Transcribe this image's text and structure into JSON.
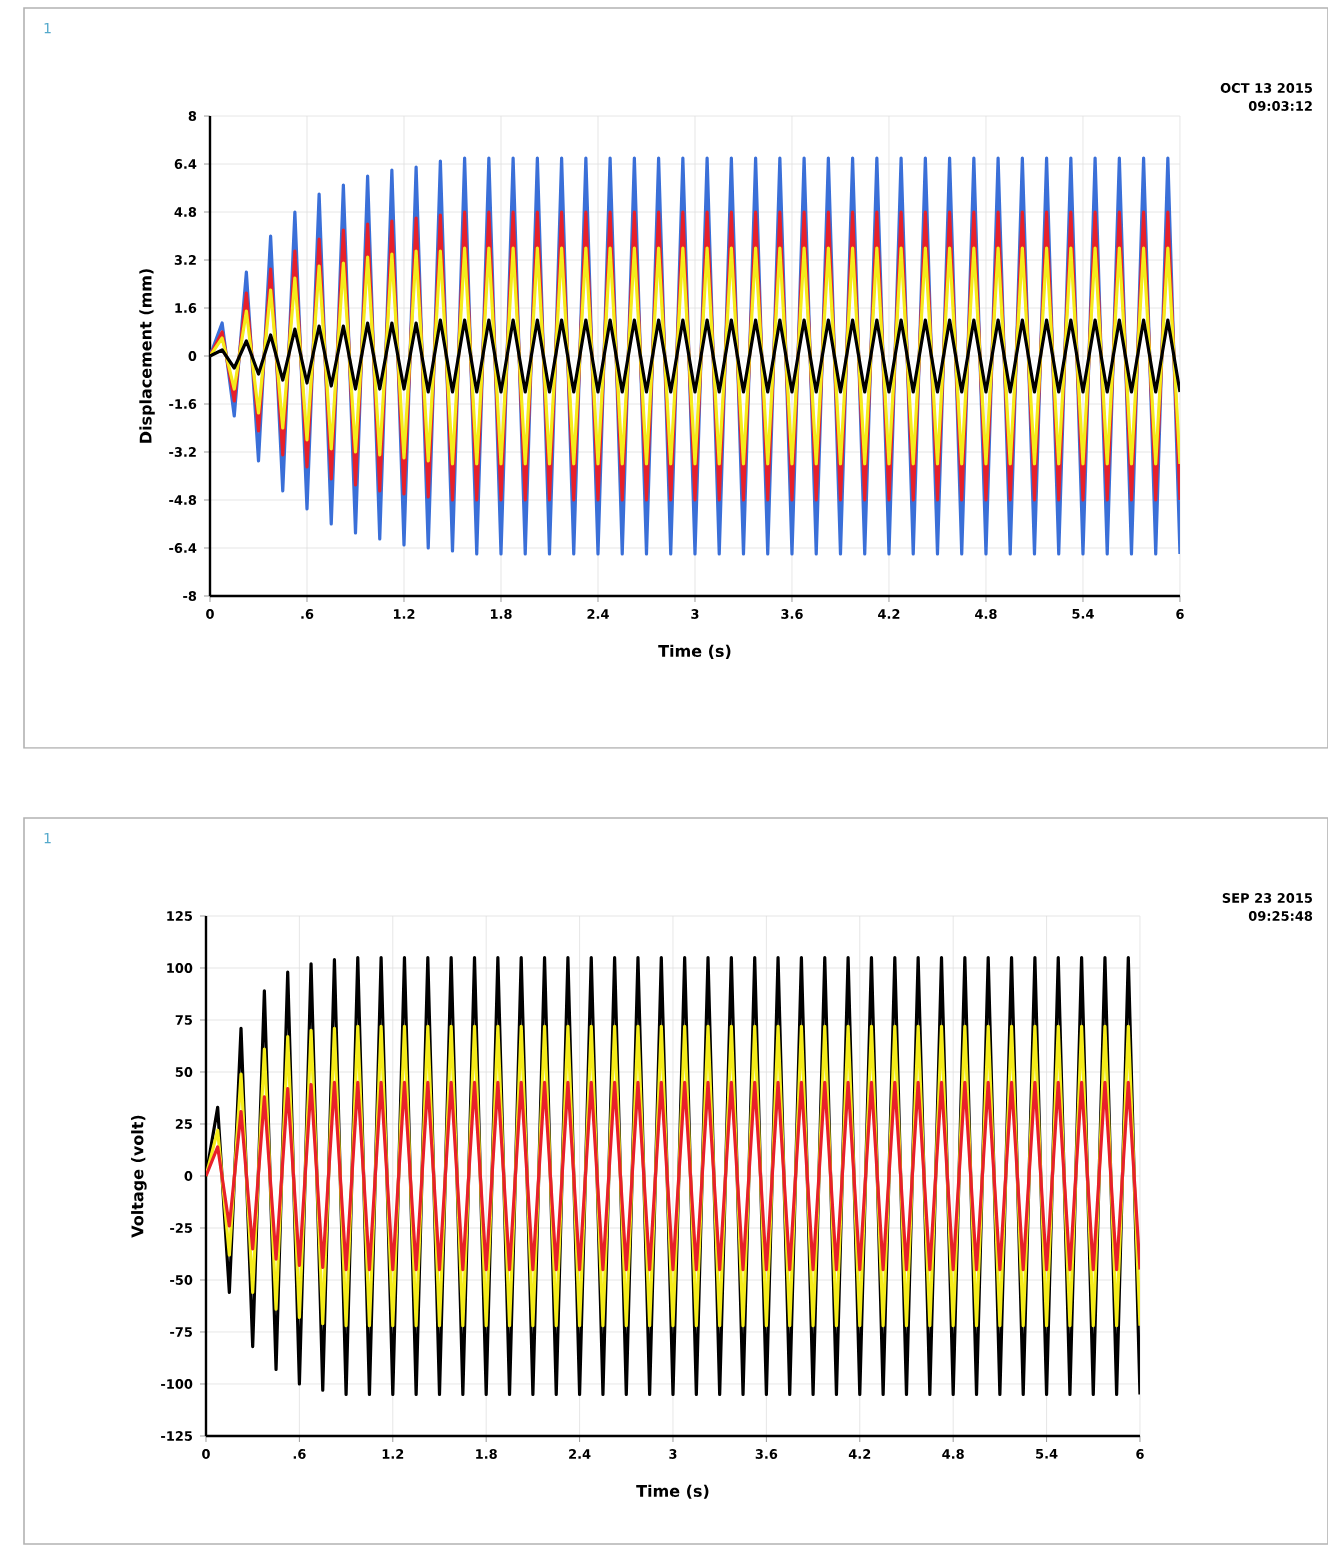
{
  "chart_data": [
    {
      "type": "line",
      "xlabel": "Time (s)",
      "ylabel": "Displacement (mm)",
      "annotations": [
        "1",
        "OCT 13 2015",
        "09:03:12"
      ],
      "xlim": [
        0,
        6
      ],
      "xticks": [
        0,
        {
          "value": 0.6,
          "label": ".6"
        },
        1.2,
        1.8,
        2.4,
        3,
        3.6,
        4.2,
        4.8,
        5.4,
        6
      ],
      "ylim": [
        -8,
        8
      ],
      "yticks": [
        -8,
        -6.4,
        -4.8,
        -3.2,
        -1.6,
        0,
        1.6,
        3.2,
        4.8,
        6.4,
        8
      ],
      "grid": true,
      "marker": "none",
      "line_style": "solid",
      "x": [
        0,
        0.075,
        0.15,
        0.225,
        0.3,
        0.375,
        0.45,
        0.525,
        0.6,
        0.675,
        0.75,
        0.825,
        0.9,
        0.975,
        1.05,
        1.125,
        1.2,
        1.275,
        1.35,
        1.425,
        1.5,
        1.575,
        1.65,
        1.725,
        1.8,
        1.875,
        1.95,
        2.025,
        2.1,
        2.175,
        2.25,
        2.325,
        2.4,
        2.475,
        2.55,
        2.625,
        2.7,
        2.775,
        2.85,
        2.925,
        3,
        3.075,
        3.15,
        3.225,
        3.3,
        3.375,
        3.45,
        3.525,
        3.6,
        3.675,
        3.75,
        3.825,
        3.9,
        3.975,
        4.05,
        4.125,
        4.2,
        4.275,
        4.35,
        4.425,
        4.5,
        4.575,
        4.65,
        4.725,
        4.8,
        4.875,
        4.95,
        5.025,
        5.1,
        5.175,
        5.25,
        5.325,
        5.4,
        5.475,
        5.55,
        5.625,
        5.7,
        5.775,
        5.85,
        5.925,
        6
      ],
      "series": [
        {
          "color": "#3a6fd8",
          "values": [
            0,
            1.1,
            -2.0,
            2.8,
            -3.5,
            4.0,
            -4.5,
            4.8,
            -5.1,
            5.4,
            -5.6,
            5.7,
            -5.9,
            6.0,
            -6.1,
            6.2,
            -6.3,
            6.3,
            -6.4,
            6.5,
            -6.5,
            6.6,
            -6.6,
            6.6,
            -6.6,
            6.6,
            -6.6,
            6.6,
            -6.6,
            6.6,
            -6.6,
            6.6,
            -6.6,
            6.6,
            -6.6,
            6.6,
            -6.6,
            6.6,
            -6.6,
            6.6,
            -6.6,
            6.6,
            -6.6,
            6.6,
            -6.6,
            6.6,
            -6.6,
            6.6,
            -6.6,
            6.6,
            -6.6,
            6.6,
            -6.6,
            6.6,
            -6.6,
            6.6,
            -6.6,
            6.6,
            -6.6,
            6.6,
            -6.6,
            6.6,
            -6.6,
            6.6,
            -6.6,
            6.6,
            -6.6,
            6.6,
            -6.6,
            6.6,
            -6.6,
            6.6,
            -6.6,
            6.6,
            -6.6,
            6.6,
            -6.6,
            6.6,
            -6.6,
            6.6,
            -6.6
          ]
        },
        {
          "color": "#e8202a",
          "values": [
            0,
            0.8,
            -1.5,
            2.1,
            -2.5,
            2.9,
            -3.3,
            3.5,
            -3.7,
            3.9,
            -4.1,
            4.2,
            -4.3,
            4.4,
            -4.5,
            4.5,
            -4.6,
            4.6,
            -4.7,
            4.7,
            -4.8,
            4.8,
            -4.8,
            4.8,
            -4.8,
            4.8,
            -4.8,
            4.8,
            -4.8,
            4.8,
            -4.8,
            4.8,
            -4.8,
            4.8,
            -4.8,
            4.8,
            -4.8,
            4.8,
            -4.8,
            4.8,
            -4.8,
            4.8,
            -4.8,
            4.8,
            -4.8,
            4.8,
            -4.8,
            4.8,
            -4.8,
            4.8,
            -4.8,
            4.8,
            -4.8,
            4.8,
            -4.8,
            4.8,
            -4.8,
            4.8,
            -4.8,
            4.8,
            -4.8,
            4.8,
            -4.8,
            4.8,
            -4.8,
            4.8,
            -4.8,
            4.8,
            -4.8,
            4.8,
            -4.8,
            4.8,
            -4.8,
            4.8,
            -4.8,
            4.8,
            -4.8,
            4.8,
            -4.8,
            4.8,
            -4.8
          ]
        },
        {
          "color": "#f5ec1a",
          "values": [
            0,
            0.6,
            -1.1,
            1.5,
            -1.9,
            2.2,
            -2.4,
            2.6,
            -2.8,
            3.0,
            -3.1,
            3.1,
            -3.2,
            3.3,
            -3.3,
            3.4,
            -3.4,
            3.5,
            -3.5,
            3.5,
            -3.6,
            3.6,
            -3.6,
            3.6,
            -3.6,
            3.6,
            -3.6,
            3.6,
            -3.6,
            3.6,
            -3.6,
            3.6,
            -3.6,
            3.6,
            -3.6,
            3.6,
            -3.6,
            3.6,
            -3.6,
            3.6,
            -3.6,
            3.6,
            -3.6,
            3.6,
            -3.6,
            3.6,
            -3.6,
            3.6,
            -3.6,
            3.6,
            -3.6,
            3.6,
            -3.6,
            3.6,
            -3.6,
            3.6,
            -3.6,
            3.6,
            -3.6,
            3.6,
            -3.6,
            3.6,
            -3.6,
            3.6,
            -3.6,
            3.6,
            -3.6,
            3.6,
            -3.6,
            3.6,
            -3.6,
            3.6,
            -3.6,
            3.6,
            -3.6,
            3.6,
            -3.6,
            3.6,
            -3.6,
            3.6,
            -3.6
          ]
        },
        {
          "color": "#000000",
          "values": [
            0,
            0.2,
            -0.4,
            0.5,
            -0.6,
            0.7,
            -0.8,
            0.9,
            -0.9,
            1.0,
            -1.0,
            1.0,
            -1.1,
            1.1,
            -1.1,
            1.1,
            -1.1,
            1.1,
            -1.2,
            1.2,
            -1.2,
            1.2,
            -1.2,
            1.2,
            -1.2,
            1.2,
            -1.2,
            1.2,
            -1.2,
            1.2,
            -1.2,
            1.2,
            -1.2,
            1.2,
            -1.2,
            1.2,
            -1.2,
            1.2,
            -1.2,
            1.2,
            -1.2,
            1.2,
            -1.2,
            1.2,
            -1.2,
            1.2,
            -1.2,
            1.2,
            -1.2,
            1.2,
            -1.2,
            1.2,
            -1.2,
            1.2,
            -1.2,
            1.2,
            -1.2,
            1.2,
            -1.2,
            1.2,
            -1.2,
            1.2,
            -1.2,
            1.2,
            -1.2,
            1.2,
            -1.2,
            1.2,
            -1.2,
            1.2,
            -1.2,
            1.2,
            -1.2,
            1.2,
            -1.2,
            1.2,
            -1.2,
            1.2,
            -1.2,
            1.2,
            -1.2
          ]
        }
      ]
    },
    {
      "type": "line",
      "xlabel": "Time (s)",
      "ylabel": "Voltage (volt)",
      "annotations": [
        "1",
        "SEP 23 2015",
        "09:25:48"
      ],
      "xlim": [
        0,
        6
      ],
      "xticks": [
        0,
        {
          "value": 0.6,
          "label": ".6"
        },
        1.2,
        1.8,
        2.4,
        3,
        3.6,
        4.2,
        4.8,
        5.4,
        6
      ],
      "ylim": [
        -125,
        125
      ],
      "yticks": [
        -125,
        -100,
        -75,
        -50,
        -25,
        0,
        25,
        50,
        75,
        100,
        125
      ],
      "grid": true,
      "marker": "none",
      "line_style": "solid",
      "x": [
        0,
        0.075,
        0.15,
        0.225,
        0.3,
        0.375,
        0.45,
        0.525,
        0.6,
        0.675,
        0.75,
        0.825,
        0.9,
        0.975,
        1.05,
        1.125,
        1.2,
        1.275,
        1.35,
        1.425,
        1.5,
        1.575,
        1.65,
        1.725,
        1.8,
        1.875,
        1.95,
        2.025,
        2.1,
        2.175,
        2.25,
        2.325,
        2.4,
        2.475,
        2.55,
        2.625,
        2.7,
        2.775,
        2.85,
        2.925,
        3,
        3.075,
        3.15,
        3.225,
        3.3,
        3.375,
        3.45,
        3.525,
        3.6,
        3.675,
        3.75,
        3.825,
        3.9,
        3.975,
        4.05,
        4.125,
        4.2,
        4.275,
        4.35,
        4.425,
        4.5,
        4.575,
        4.65,
        4.725,
        4.8,
        4.875,
        4.95,
        5.025,
        5.1,
        5.175,
        5.25,
        5.325,
        5.4,
        5.475,
        5.55,
        5.625,
        5.7,
        5.775,
        5.85,
        5.925,
        6
      ],
      "series": [
        {
          "color": "#000000",
          "values": [
            0,
            33,
            -56,
            71,
            -82,
            89,
            -93,
            98,
            -100,
            102,
            -103,
            104,
            -105,
            105,
            -105,
            105,
            -105,
            105,
            -105,
            105,
            -105,
            105,
            -105,
            105,
            -105,
            105,
            -105,
            105,
            -105,
            105,
            -105,
            105,
            -105,
            105,
            -105,
            105,
            -105,
            105,
            -105,
            105,
            -105,
            105,
            -105,
            105,
            -105,
            105,
            -105,
            105,
            -105,
            105,
            -105,
            105,
            -105,
            105,
            -105,
            105,
            -105,
            105,
            -105,
            105,
            -105,
            105,
            -105,
            105,
            -105,
            105,
            -105,
            105,
            -105,
            105,
            -105,
            105,
            -105,
            105,
            -105,
            105,
            -105,
            105,
            -105,
            105,
            -105
          ]
        },
        {
          "color": "#f5ec1a",
          "values": [
            0,
            22,
            -38,
            49,
            -56,
            61,
            -64,
            67,
            -68,
            70,
            -71,
            71,
            -72,
            72,
            -72,
            72,
            -72,
            72,
            -72,
            72,
            -72,
            72,
            -72,
            72,
            -72,
            72,
            -72,
            72,
            -72,
            72,
            -72,
            72,
            -72,
            72,
            -72,
            72,
            -72,
            72,
            -72,
            72,
            -72,
            72,
            -72,
            72,
            -72,
            72,
            -72,
            72,
            -72,
            72,
            -72,
            72,
            -72,
            72,
            -72,
            72,
            -72,
            72,
            -72,
            72,
            -72,
            72,
            -72,
            72,
            -72,
            72,
            -72,
            72,
            -72,
            72,
            -72,
            72,
            -72,
            72,
            -72,
            72,
            -72,
            72,
            -72,
            72,
            -72
          ]
        },
        {
          "color": "#e8202a",
          "values": [
            0,
            14,
            -24,
            31,
            -35,
            38,
            -40,
            42,
            -43,
            44,
            -44,
            45,
            -45,
            45,
            -45,
            45,
            -45,
            45,
            -45,
            45,
            -45,
            45,
            -45,
            45,
            -45,
            45,
            -45,
            45,
            -45,
            45,
            -45,
            45,
            -45,
            45,
            -45,
            45,
            -45,
            45,
            -45,
            45,
            -45,
            45,
            -45,
            45,
            -45,
            45,
            -45,
            45,
            -45,
            45,
            -45,
            45,
            -45,
            45,
            -45,
            45,
            -45,
            45,
            -45,
            45,
            -45,
            45,
            -45,
            45,
            -45,
            45,
            -45,
            45,
            -45,
            45,
            -45,
            45,
            -45,
            45,
            -45,
            45,
            -45,
            45,
            -45,
            45,
            -45
          ]
        }
      ]
    }
  ]
}
